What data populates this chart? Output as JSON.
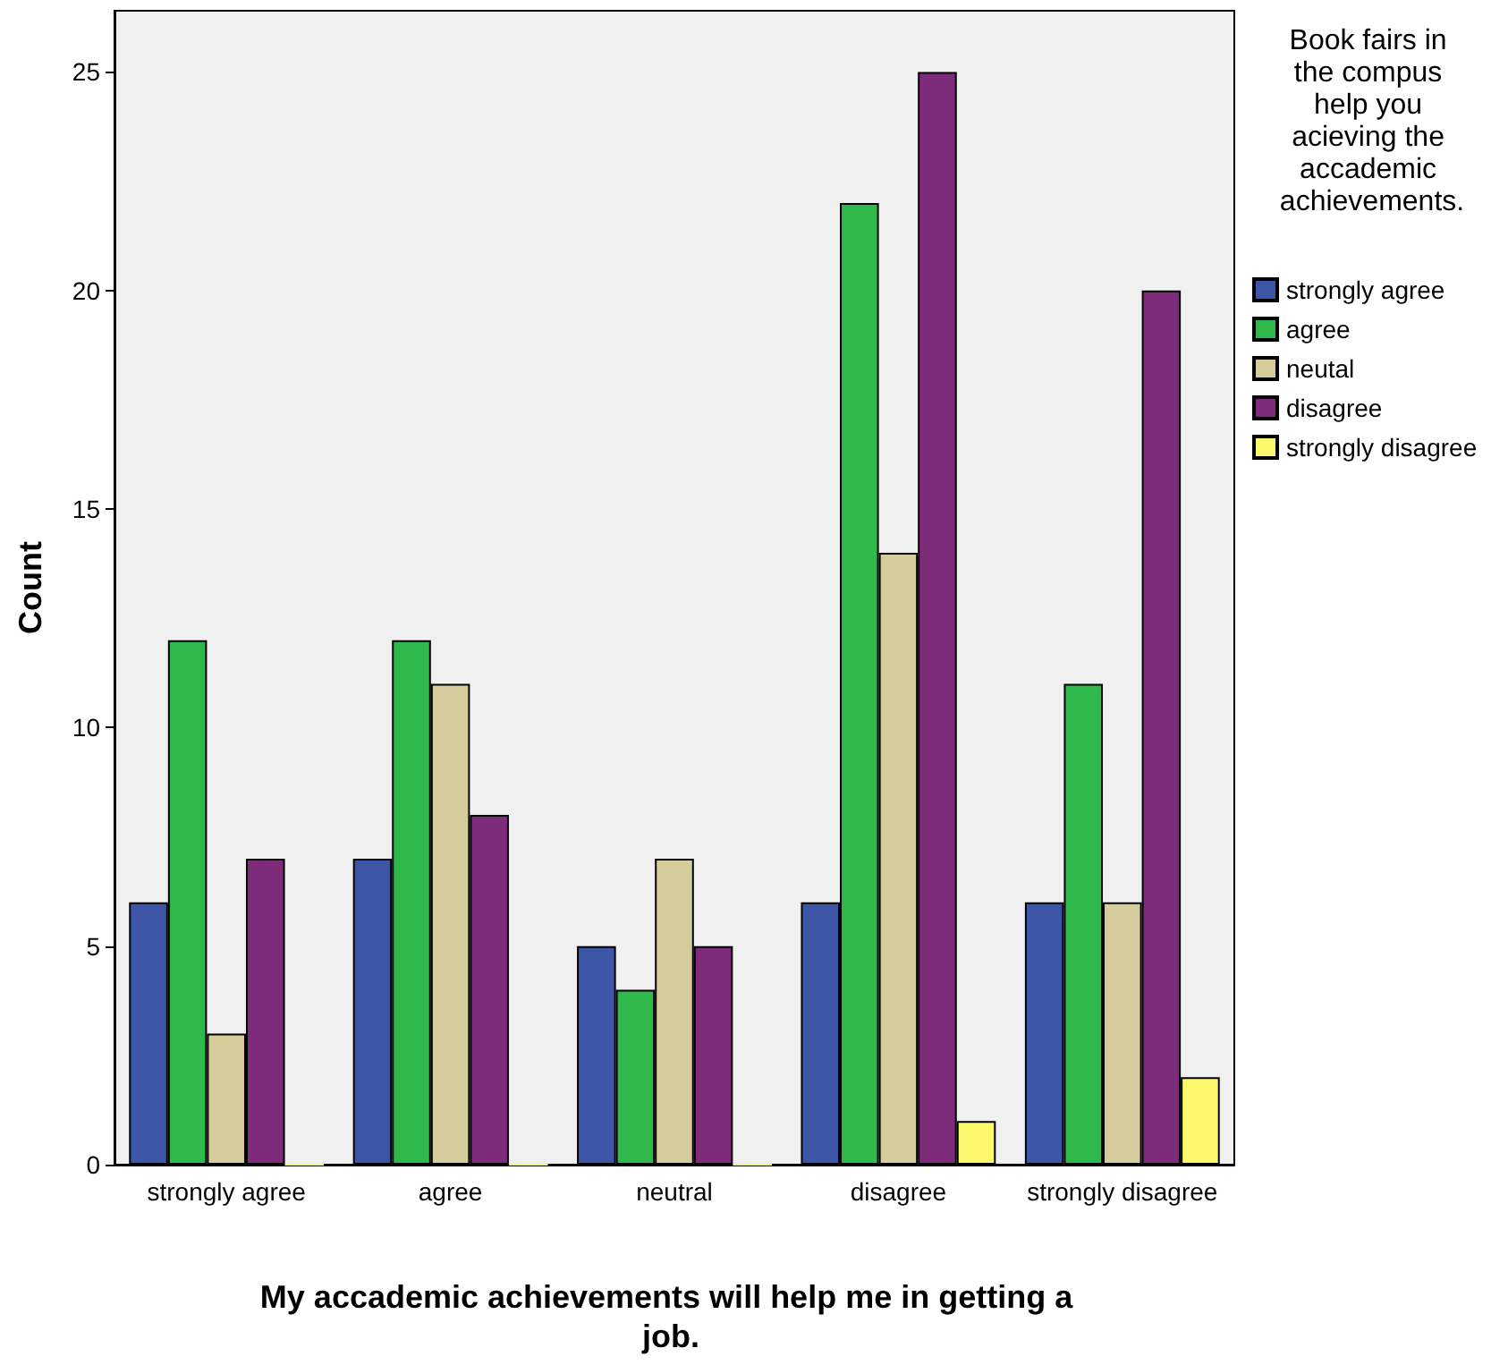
{
  "chart_data": {
    "type": "bar",
    "xlabel": "My accademic achievements will help me in getting a job.",
    "ylabel": "Count",
    "legend_title": "Book fairs in the compus help you acieving the accademic achievements.",
    "categories": [
      "strongly agree",
      "agree",
      "neutral",
      "disagree",
      "strongly disagree"
    ],
    "series": [
      {
        "name": "strongly agree",
        "color": "#3c55a7",
        "values": [
          6,
          7,
          5,
          6,
          6
        ]
      },
      {
        "name": "agree",
        "color": "#2fb84c",
        "values": [
          12,
          12,
          4,
          22,
          11
        ]
      },
      {
        "name": "neutal",
        "color": "#d5cc9c",
        "values": [
          3,
          11,
          7,
          14,
          6
        ]
      },
      {
        "name": "disagree",
        "color": "#7d2b7a",
        "values": [
          7,
          8,
          5,
          25,
          20
        ]
      },
      {
        "name": "strongly disagree",
        "color": "#fbf86c",
        "values": [
          0,
          0,
          0,
          1,
          2
        ]
      }
    ],
    "ylim": [
      0,
      26.4
    ],
    "yticks": [
      0,
      5,
      10,
      15,
      20,
      25
    ],
    "grid": false,
    "legend": "right"
  }
}
